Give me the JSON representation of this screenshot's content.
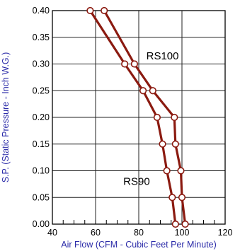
{
  "chart_data": {
    "type": "line",
    "xlabel": "Air Flow (CFM - Cubic Feet Per Minute)",
    "ylabel": "S.P. (Static Pressure - Inch W.G.)",
    "xlim": [
      40,
      120
    ],
    "ylim": [
      0,
      0.4
    ],
    "x_ticks": [
      40,
      60,
      80,
      100,
      120
    ],
    "x_tick_labels": [
      "40",
      "60",
      "80",
      "100",
      "120"
    ],
    "y_ticks": [
      0,
      0.05,
      0.1,
      0.15,
      0.2,
      0.25,
      0.3,
      0.35,
      0.4
    ],
    "y_tick_labels": [
      "0.00",
      "0.05",
      "0.10",
      "0.15",
      "0.20",
      "0.25",
      "0.30",
      "0.35",
      "0.40"
    ],
    "grid": true,
    "line_color": "#8b1a10",
    "marker_fill": "#ffffff",
    "axis_title_color": "#2a2aa8",
    "series": [
      {
        "name": "RS90",
        "points": [
          [
            57.5,
            0.4
          ],
          [
            73.5,
            0.3
          ],
          [
            82,
            0.25
          ],
          [
            88.5,
            0.2
          ],
          [
            91,
            0.15
          ],
          [
            93,
            0.1
          ],
          [
            95.5,
            0.05
          ],
          [
            97,
            0.0
          ]
        ]
      },
      {
        "name": "RS100",
        "points": [
          [
            64,
            0.4
          ],
          [
            78,
            0.3
          ],
          [
            86.5,
            0.25
          ],
          [
            96.5,
            0.2
          ],
          [
            97,
            0.15
          ],
          [
            99.5,
            0.1
          ],
          [
            100,
            0.05
          ],
          [
            101.5,
            0.0
          ]
        ]
      }
    ],
    "annotations": [
      {
        "text": "RS100",
        "x": 91,
        "y": 0.315
      },
      {
        "text": "RS90",
        "x": 79,
        "y": 0.08
      }
    ]
  }
}
